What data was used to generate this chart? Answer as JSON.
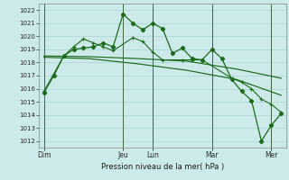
{
  "background_color": "#cceaea",
  "grid_color": "#aad4d4",
  "line_color": "#1a6b1a",
  "marker_color": "#1a6b1a",
  "xlabel": "Pression niveau de la mer( hPa )",
  "ylim": [
    1011.5,
    1022.5
  ],
  "yticks": [
    1012,
    1013,
    1014,
    1015,
    1016,
    1017,
    1018,
    1019,
    1020,
    1021,
    1022
  ],
  "xlim": [
    0,
    25
  ],
  "day_labels": [
    "Dim",
    "Jeu",
    "Lun",
    "Mar",
    "Mer"
  ],
  "day_positions": [
    0.5,
    8.5,
    11.5,
    17.5,
    23.5
  ],
  "vline_positions": [
    0.5,
    8.5,
    11.5,
    17.5,
    23.5
  ],
  "series1_x": [
    0.5,
    1.5,
    2.5,
    3.5,
    4.5,
    5.5,
    6.5,
    7.5,
    8.5,
    9.5,
    10.5,
    11.5,
    12.5,
    13.5,
    14.5,
    15.5,
    16.5,
    17.5,
    18.5,
    19.5,
    20.5,
    21.5,
    22.5,
    23.5,
    24.5
  ],
  "series1_y": [
    1015.7,
    1017.0,
    1018.5,
    1019.0,
    1019.1,
    1019.2,
    1019.5,
    1019.2,
    1021.7,
    1021.0,
    1020.5,
    1021.0,
    1020.6,
    1018.7,
    1019.1,
    1018.3,
    1018.2,
    1019.0,
    1018.3,
    1016.7,
    1015.8,
    1015.1,
    1012.0,
    1013.2,
    1014.1
  ],
  "series2_x": [
    0.5,
    2.5,
    3.5,
    4.5,
    5.5,
    6.5,
    7.5,
    9.5,
    10.5,
    11.5,
    12.5,
    14.5,
    15.5,
    16.5,
    19.5,
    20.5,
    21.5,
    22.5,
    23.5,
    24.5
  ],
  "series2_y": [
    1015.8,
    1018.5,
    1019.2,
    1019.8,
    1019.5,
    1019.2,
    1018.9,
    1019.9,
    1019.6,
    1018.8,
    1018.2,
    1018.2,
    1018.2,
    1018.2,
    1016.8,
    1016.5,
    1016.0,
    1015.2,
    1014.8,
    1014.2
  ],
  "series3_x": [
    0.5,
    5.0,
    10.0,
    15.0,
    20.0,
    24.5
  ],
  "series3_y": [
    1018.5,
    1018.45,
    1018.3,
    1018.1,
    1017.5,
    1016.8
  ],
  "series4_x": [
    0.5,
    5.0,
    10.0,
    15.0,
    20.0,
    24.5
  ],
  "series4_y": [
    1018.4,
    1018.3,
    1017.9,
    1017.4,
    1016.7,
    1015.5
  ]
}
